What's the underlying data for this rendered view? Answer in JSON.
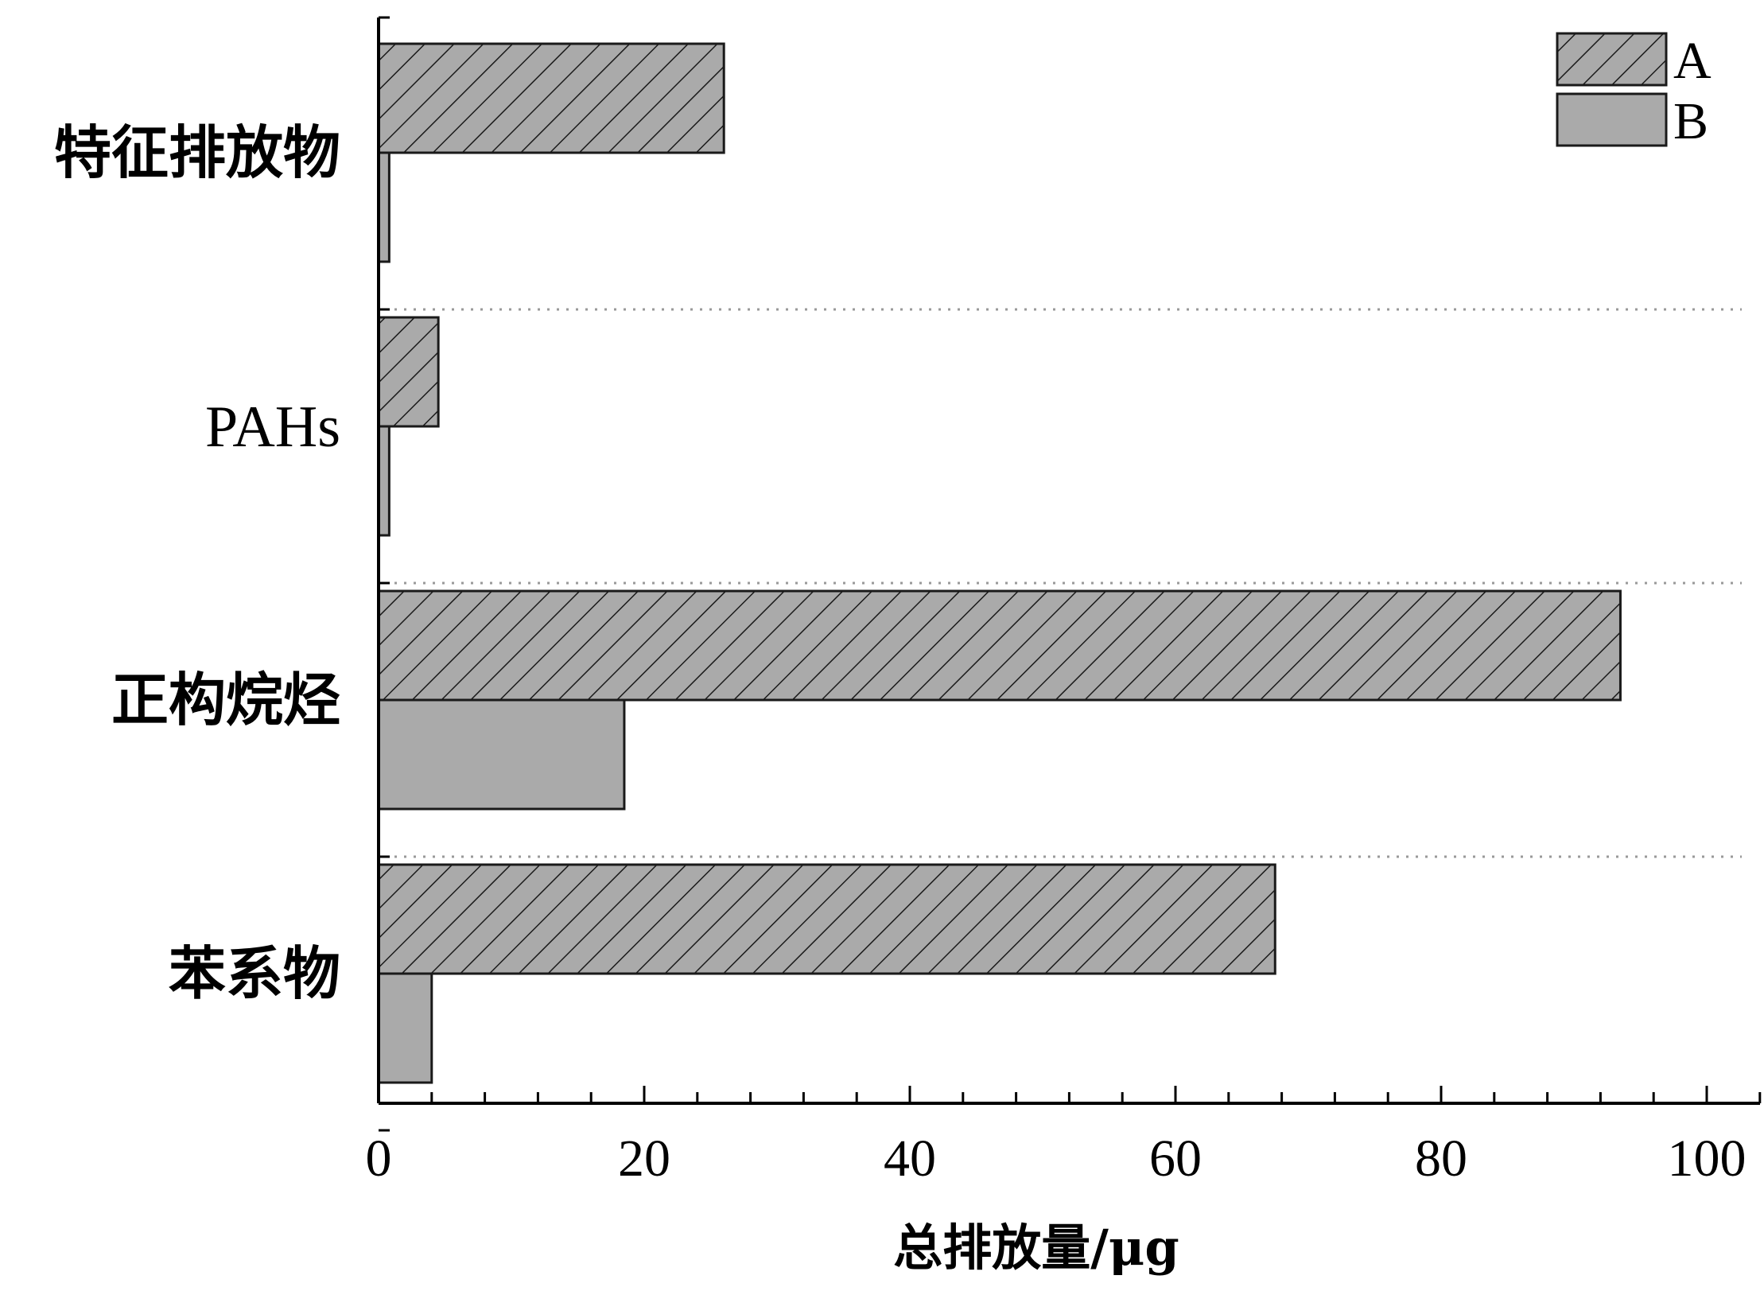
{
  "chart_data": {
    "type": "bar",
    "orientation": "horizontal",
    "categories": [
      "特征排放物",
      "PAHs",
      "正构烷烃",
      "苯系物"
    ],
    "series": [
      {
        "name": "A",
        "values": [
          26,
          4.5,
          93.5,
          67.5
        ],
        "fill": "#aaaaaa",
        "pattern": "diagonal-hatch"
      },
      {
        "name": "B",
        "values": [
          0.8,
          0.8,
          18.5,
          4
        ],
        "fill": "#aaaaaa",
        "pattern": "solid"
      }
    ],
    "xlabel": "总排放量/μg",
    "ylabel": "",
    "xlim": [
      0,
      104
    ],
    "xticks": [
      0,
      20,
      40,
      60,
      80,
      100
    ],
    "xtick_labels": [
      "0",
      "20",
      "40",
      "60",
      "80",
      "100"
    ],
    "grid": "dotted horizontal separators between categories",
    "legend_position": "top-right"
  }
}
